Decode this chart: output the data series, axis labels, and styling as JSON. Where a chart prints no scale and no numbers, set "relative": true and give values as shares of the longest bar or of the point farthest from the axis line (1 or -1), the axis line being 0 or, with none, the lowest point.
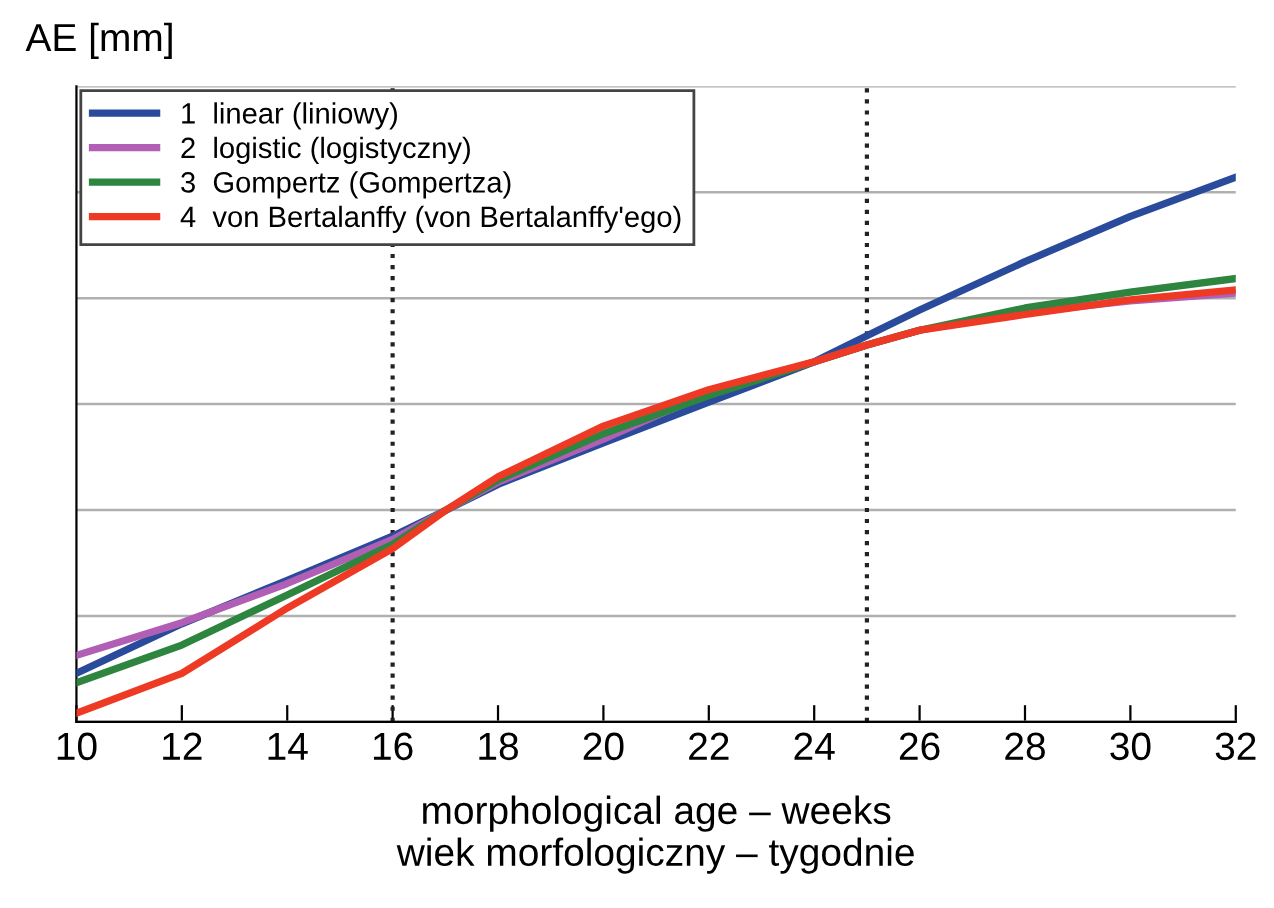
{
  "chart_data": {
    "type": "line",
    "ylabel": "AE [mm]",
    "xlabel": "morphological age – weeks\nwiek morfologiczny – tygodnie",
    "relative": true,
    "x": [
      10,
      12,
      14,
      16,
      17,
      18,
      20,
      22,
      24,
      25,
      26,
      28,
      30,
      32
    ],
    "xlim": [
      10,
      32
    ],
    "xticks": [
      10,
      12,
      14,
      16,
      18,
      20,
      22,
      24,
      26,
      28,
      30,
      32
    ],
    "grid": "y",
    "legend": "top left",
    "line_style": "solid",
    "marker": "none",
    "series": [
      {
        "name": "1  linear (liniowy)",
        "color": "#2a4b9b",
        "values": [
          0.089,
          0.18,
          0.26,
          0.341,
          0.388,
          0.436,
          0.512,
          0.587,
          0.661,
          0.709,
          0.756,
          0.845,
          0.928,
          1
        ]
      },
      {
        "name": "2  logistic (logistyczny)",
        "color": "#b05fb5",
        "values": [
          0.122,
          0.182,
          0.254,
          0.335,
          0.388,
          0.44,
          0.519,
          0.605,
          0.661,
          0.692,
          0.719,
          0.752,
          0.773,
          0.787
        ]
      },
      {
        "name": "3  Gompertz (Gompertza)",
        "color": "#2e8540",
        "values": [
          0.072,
          0.141,
          0.233,
          0.326,
          0.388,
          0.444,
          0.529,
          0.599,
          0.661,
          0.692,
          0.719,
          0.76,
          0.789,
          0.814
        ]
      },
      {
        "name": "4  von Bertalanffy (von Bertalanffy'ego)",
        "color": "#ee3a24",
        "values": [
          0.016,
          0.089,
          0.209,
          0.318,
          0.388,
          0.45,
          0.543,
          0.61,
          0.661,
          0.692,
          0.719,
          0.748,
          0.775,
          0.793
        ]
      }
    ],
    "ref_lines": [
      {
        "axis": "x",
        "value": 16,
        "color": "#222222",
        "line_style": "dotted"
      },
      {
        "axis": "x",
        "value": 25,
        "color": "#222222",
        "line_style": "dotted"
      }
    ]
  }
}
